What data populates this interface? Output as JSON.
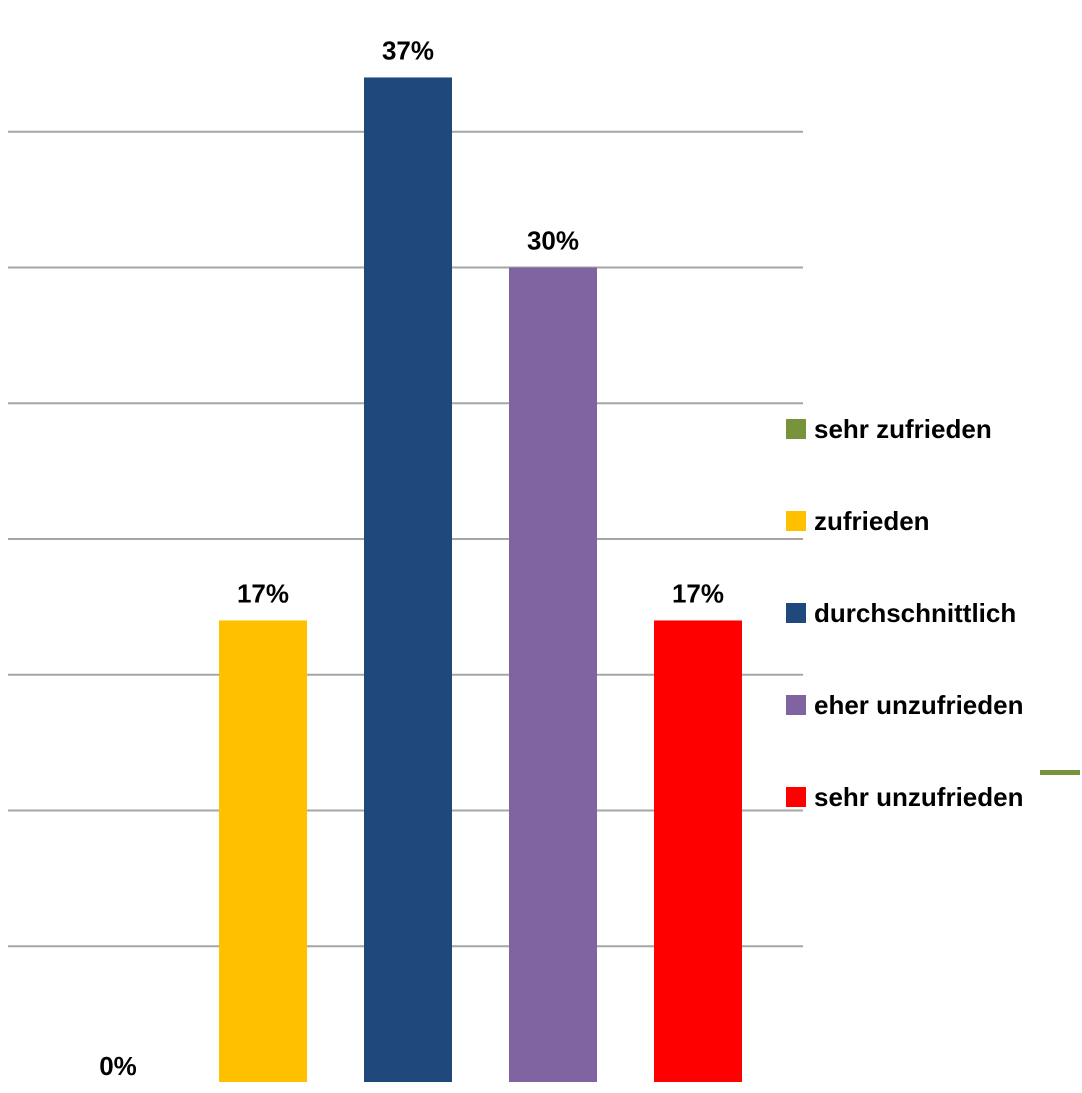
{
  "chart_data": {
    "type": "bar",
    "categories": [
      "sehr zufrieden",
      "zufrieden",
      "durchschnittlich",
      "eher unzufrieden",
      "sehr unzufrieden"
    ],
    "values": [
      0,
      17,
      37,
      30,
      17
    ],
    "value_labels": [
      "0%",
      "17%",
      "37%",
      "30%",
      "17%"
    ],
    "colors": [
      "#77933C",
      "#FFC000",
      "#1F497D",
      "#8064A2",
      "#FF0000"
    ],
    "unit": "%",
    "ylim": [
      0,
      40
    ],
    "grid": true,
    "legend_position": "right",
    "legend": [
      {
        "label": "sehr zufrieden",
        "color": "#77933C"
      },
      {
        "label": "zufrieden",
        "color": "#FFC000"
      },
      {
        "label": "durchschnittlich",
        "color": "#1F497D"
      },
      {
        "label": "eher unzufrieden",
        "color": "#8064A2"
      },
      {
        "label": "sehr unzufrieden",
        "color": "#FF0000"
      }
    ],
    "gridline_color": "#A6A6A6",
    "decoration_color": "#77933C"
  }
}
